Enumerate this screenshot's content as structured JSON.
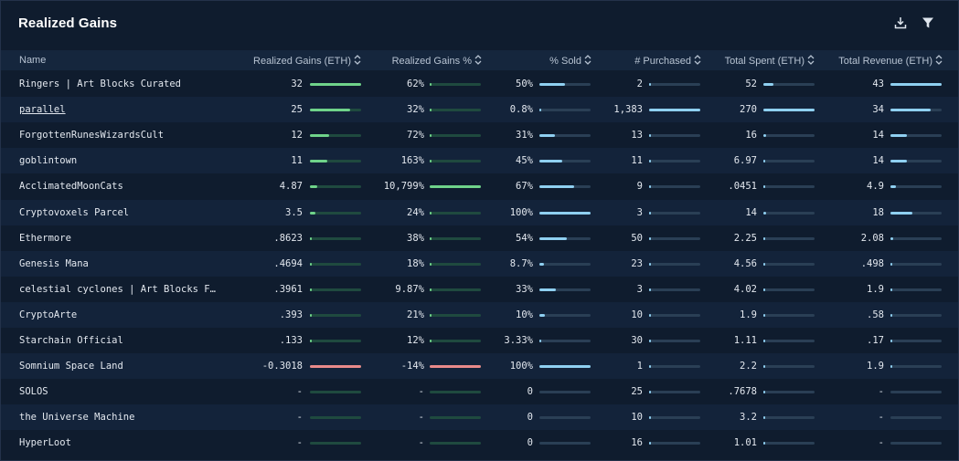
{
  "widget": {
    "title": "Realized Gains",
    "download_icon": "download-icon",
    "filter_icon": "filter-icon"
  },
  "columns": [
    "Name",
    "Realized Gains (ETH)",
    "Realized Gains %",
    "% Sold",
    "# Purchased",
    "Total Spent (ETH)",
    "Total Revenue (ETH)"
  ],
  "colors": {
    "positive": "#6fd38a",
    "negative": "#e98a8a",
    "neutral": "#8fd0f1"
  },
  "rows": [
    {
      "name": "Ringers | Art Blocks Curated",
      "gains": "32",
      "gains_pct": "62%",
      "sold": "50%",
      "purchased": "2",
      "spent": "52",
      "revenue": "43",
      "link": false,
      "f": {
        "gains": 1.0,
        "gains_pct": 0.006,
        "sold": 0.5,
        "purchased": 0.0015,
        "spent": 0.19,
        "revenue": 1.0
      }
    },
    {
      "name": "parallel",
      "gains": "25",
      "gains_pct": "32%",
      "sold": "0.8%",
      "purchased": "1,383",
      "spent": "270",
      "revenue": "34",
      "link": true,
      "f": {
        "gains": 0.78,
        "gains_pct": 0.003,
        "sold": 0.008,
        "purchased": 1.0,
        "spent": 1.0,
        "revenue": 0.79
      }
    },
    {
      "name": "ForgottenRunesWizardsCult",
      "gains": "12",
      "gains_pct": "72%",
      "sold": "31%",
      "purchased": "13",
      "spent": "16",
      "revenue": "14",
      "link": false,
      "f": {
        "gains": 0.375,
        "gains_pct": 0.007,
        "sold": 0.31,
        "purchased": 0.009,
        "spent": 0.06,
        "revenue": 0.33
      }
    },
    {
      "name": "goblintown",
      "gains": "11",
      "gains_pct": "163%",
      "sold": "45%",
      "purchased": "11",
      "spent": "6.97",
      "revenue": "14",
      "link": false,
      "f": {
        "gains": 0.34,
        "gains_pct": 0.015,
        "sold": 0.45,
        "purchased": 0.008,
        "spent": 0.026,
        "revenue": 0.33
      }
    },
    {
      "name": "AcclimatedMoonCats",
      "gains": "4.87",
      "gains_pct": "10,799%",
      "sold": "67%",
      "purchased": "9",
      "spent": ".0451",
      "revenue": "4.9",
      "link": false,
      "f": {
        "gains": 0.15,
        "gains_pct": 1.0,
        "sold": 0.67,
        "purchased": 0.007,
        "spent": 0.0002,
        "revenue": 0.11
      }
    },
    {
      "name": "Cryptovoxels Parcel",
      "gains": "3.5",
      "gains_pct": "24%",
      "sold": "100%",
      "purchased": "3",
      "spent": "14",
      "revenue": "18",
      "link": false,
      "f": {
        "gains": 0.11,
        "gains_pct": 0.002,
        "sold": 1.0,
        "purchased": 0.002,
        "spent": 0.052,
        "revenue": 0.42
      }
    },
    {
      "name": "Ethermore",
      "gains": ".8623",
      "gains_pct": "38%",
      "sold": "54%",
      "purchased": "50",
      "spent": "2.25",
      "revenue": "2.08",
      "link": false,
      "f": {
        "gains": 0.027,
        "gains_pct": 0.0035,
        "sold": 0.54,
        "purchased": 0.036,
        "spent": 0.008,
        "revenue": 0.048
      }
    },
    {
      "name": "Genesis Mana",
      "gains": ".4694",
      "gains_pct": "18%",
      "sold": "8.7%",
      "purchased": "23",
      "spent": "4.56",
      "revenue": ".498",
      "link": false,
      "f": {
        "gains": 0.015,
        "gains_pct": 0.0017,
        "sold": 0.087,
        "purchased": 0.017,
        "spent": 0.017,
        "revenue": 0.012
      }
    },
    {
      "name": "celestial cyclones | Art Blocks F…",
      "gains": ".3961",
      "gains_pct": "9.87%",
      "sold": "33%",
      "purchased": "3",
      "spent": "4.02",
      "revenue": "1.9",
      "link": false,
      "f": {
        "gains": 0.012,
        "gains_pct": 0.0009,
        "sold": 0.33,
        "purchased": 0.002,
        "spent": 0.015,
        "revenue": 0.044
      }
    },
    {
      "name": "CryptoArte",
      "gains": ".393",
      "gains_pct": "21%",
      "sold": "10%",
      "purchased": "10",
      "spent": "1.9",
      "revenue": ".58",
      "link": false,
      "f": {
        "gains": 0.012,
        "gains_pct": 0.002,
        "sold": 0.1,
        "purchased": 0.007,
        "spent": 0.007,
        "revenue": 0.013
      }
    },
    {
      "name": "Starchain Official",
      "gains": ".133",
      "gains_pct": "12%",
      "sold": "3.33%",
      "purchased": "30",
      "spent": "1.11",
      "revenue": ".17",
      "link": false,
      "f": {
        "gains": 0.004,
        "gains_pct": 0.001,
        "sold": 0.033,
        "purchased": 0.022,
        "spent": 0.004,
        "revenue": 0.004
      }
    },
    {
      "name": "Somnium Space Land",
      "gains": "-0.3018",
      "gains_pct": "-14%",
      "sold": "100%",
      "purchased": "1",
      "spent": "2.2",
      "revenue": "1.9",
      "link": false,
      "negative": true,
      "f": {
        "gains": 1.0,
        "gains_pct": 1.0,
        "sold": 1.0,
        "purchased": 0.0007,
        "spent": 0.008,
        "revenue": 0.044
      }
    },
    {
      "name": "SOLOS",
      "gains": "-",
      "gains_pct": "-",
      "sold": "0",
      "purchased": "25",
      "spent": ".7678",
      "revenue": "-",
      "link": false,
      "f": {
        "gains": 0,
        "gains_pct": 0,
        "sold": 0,
        "purchased": 0.018,
        "spent": 0.003,
        "revenue": 0
      }
    },
    {
      "name": "the Universe Machine",
      "gains": "-",
      "gains_pct": "-",
      "sold": "0",
      "purchased": "10",
      "spent": "3.2",
      "revenue": "-",
      "link": false,
      "f": {
        "gains": 0,
        "gains_pct": 0,
        "sold": 0,
        "purchased": 0.007,
        "spent": 0.012,
        "revenue": 0
      }
    },
    {
      "name": "HyperLoot",
      "gains": "-",
      "gains_pct": "-",
      "sold": "0",
      "purchased": "16",
      "spent": "1.01",
      "revenue": "-",
      "link": false,
      "f": {
        "gains": 0,
        "gains_pct": 0,
        "sold": 0,
        "purchased": 0.012,
        "spent": 0.004,
        "revenue": 0
      }
    }
  ]
}
